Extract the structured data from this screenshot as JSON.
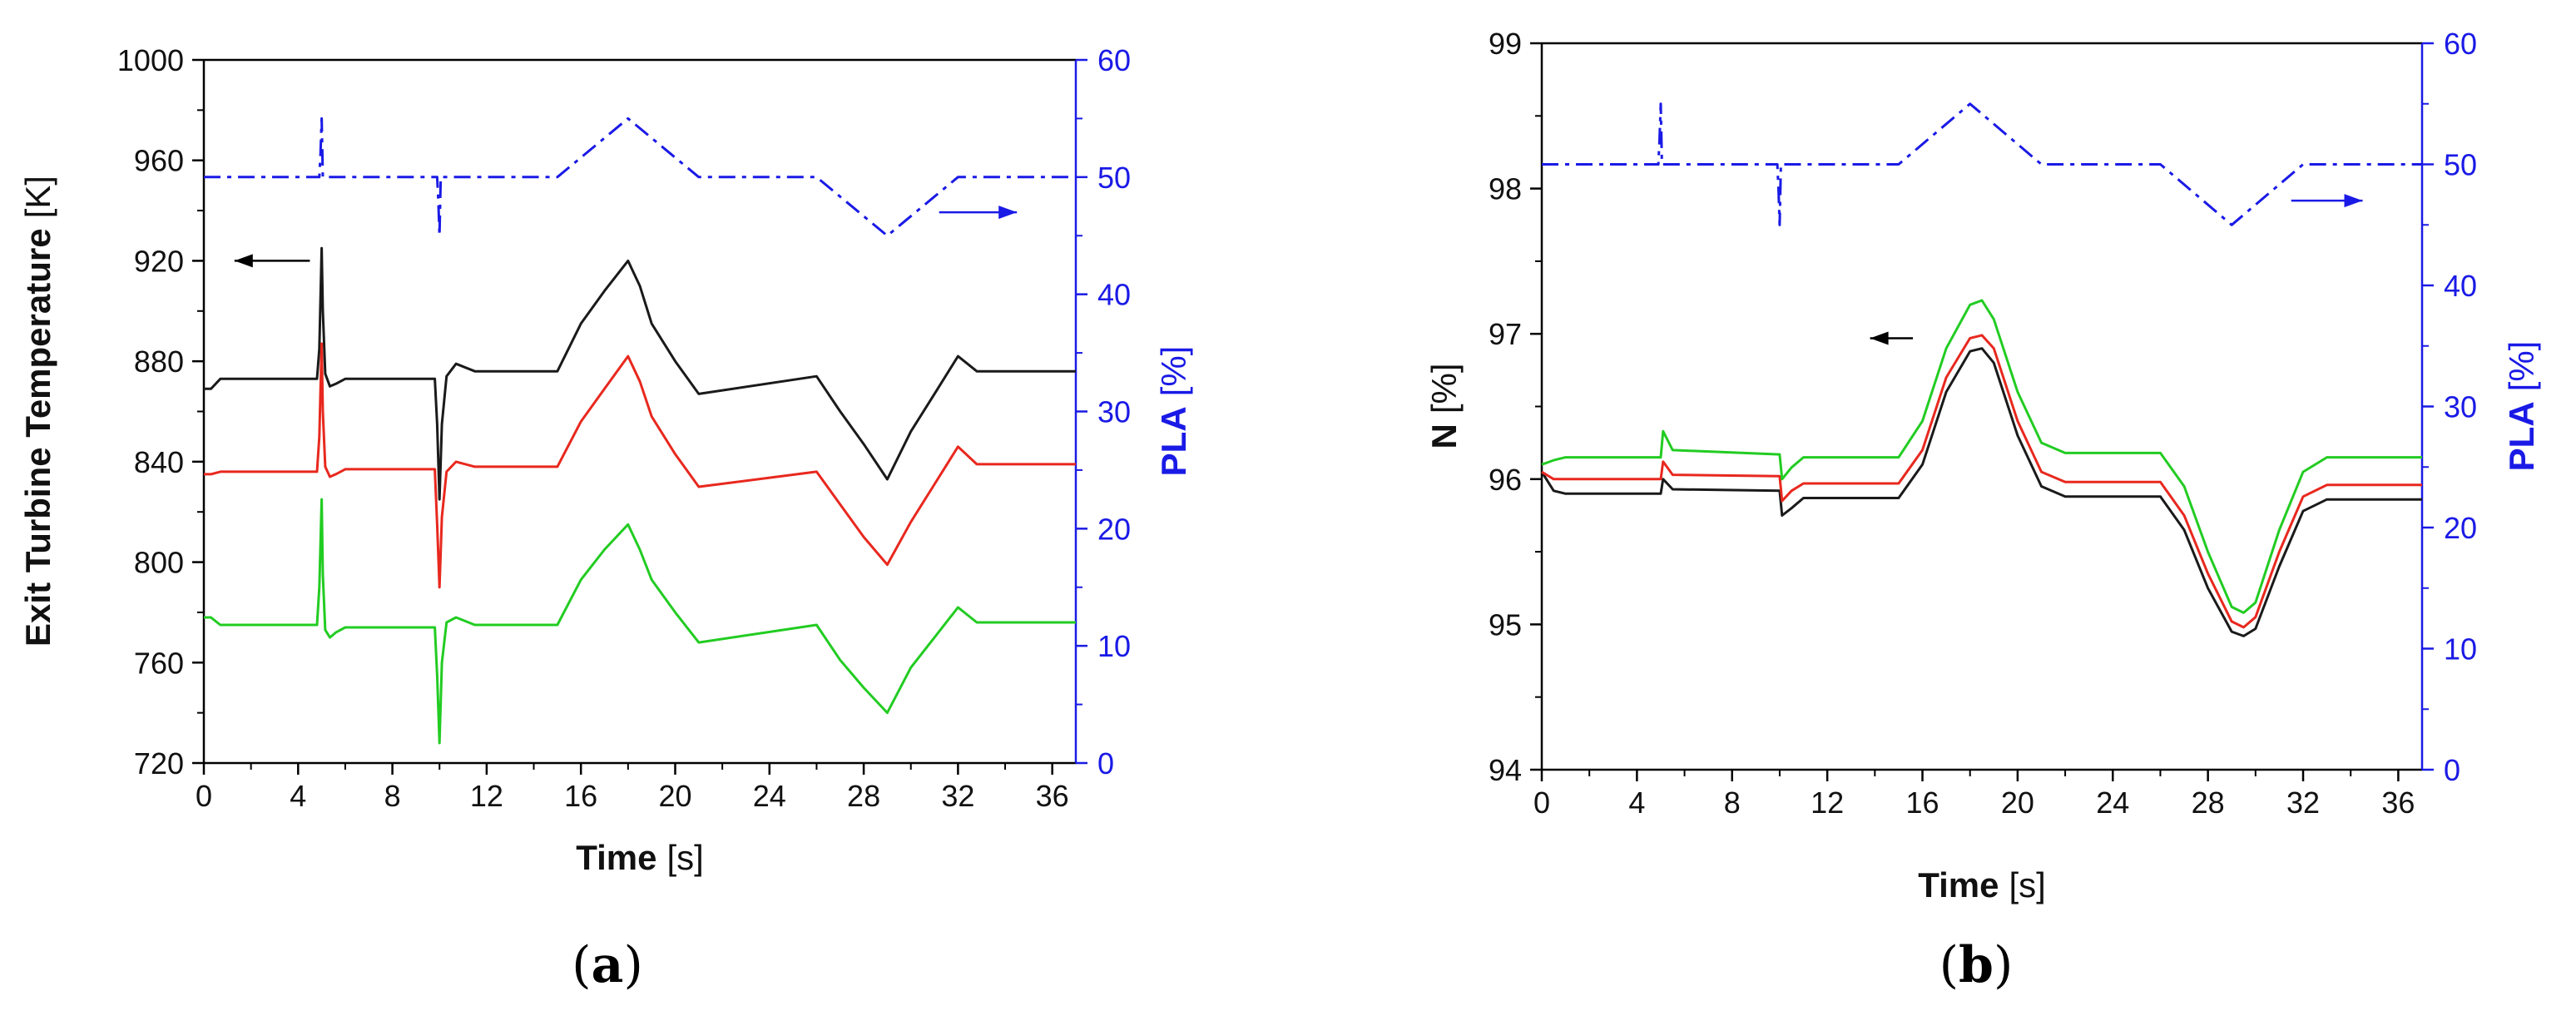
{
  "colors": {
    "black": "#1a1a1a",
    "red": "#e8281e",
    "green": "#22cc22",
    "blue": "#1a1ae6"
  },
  "chart_data": [
    {
      "type": "line",
      "panel": "(a)",
      "panel_label": {
        "open": "(",
        "letter": "a",
        "close": ")"
      },
      "xlabel": {
        "bold": "Time",
        "unit": "[s]"
      },
      "ylabel": {
        "bold": "Exit Turbine Temperature",
        "unit": "[K]"
      },
      "y2label": {
        "bold": "PLA",
        "unit": "[%]"
      },
      "xlim": [
        0,
        37
      ],
      "ylim": [
        720,
        1000
      ],
      "y2lim": [
        0,
        60
      ],
      "xticks": [
        0,
        4,
        8,
        12,
        16,
        20,
        24,
        28,
        32,
        36
      ],
      "yticks": [
        720,
        760,
        800,
        840,
        880,
        920,
        960,
        1000
      ],
      "y2ticks": [
        0,
        10,
        20,
        30,
        40,
        50,
        60
      ],
      "arrows": [
        {
          "direction": "left",
          "axis": "left",
          "x": [
            4.5,
            1.3
          ],
          "y": 920
        },
        {
          "direction": "right",
          "axis": "right",
          "x": [
            31.2,
            34.5
          ],
          "y": 47
        }
      ],
      "series": [
        {
          "name": "black",
          "axis": "left",
          "color": "#1a1a1a",
          "x": [
            0,
            0.3,
            0.7,
            4.8,
            4.9,
            5.0,
            5.05,
            5.15,
            5.35,
            5.6,
            6.0,
            9.8,
            9.9,
            10.0,
            10.1,
            10.3,
            10.7,
            11.5,
            15.0,
            16.0,
            17.0,
            18.0,
            18.5,
            19.0,
            20.0,
            21.0,
            26.0,
            27.0,
            28.0,
            29.0,
            30.0,
            31.0,
            32.0,
            32.8,
            37
          ],
          "y": [
            869,
            869,
            873,
            873,
            885,
            925,
            900,
            875,
            870,
            871,
            873,
            873,
            855,
            825,
            855,
            874,
            879,
            876,
            876,
            895,
            908,
            920,
            910,
            895,
            880,
            867,
            874,
            860,
            847,
            833,
            852,
            867,
            882,
            876,
            876
          ]
        },
        {
          "name": "red",
          "axis": "left",
          "color": "#e8281e",
          "x": [
            0,
            0.3,
            0.7,
            4.8,
            4.9,
            5.0,
            5.05,
            5.15,
            5.35,
            5.6,
            6.0,
            9.8,
            9.9,
            10.0,
            10.1,
            10.3,
            10.7,
            11.5,
            15.0,
            16.0,
            17.0,
            18.0,
            18.5,
            19.0,
            20.0,
            21.0,
            26.0,
            27.0,
            28.0,
            29.0,
            30.0,
            31.0,
            32.0,
            32.8,
            37
          ],
          "y": [
            835,
            835,
            836,
            836,
            850,
            887,
            860,
            838,
            834,
            835,
            837,
            837,
            815,
            790,
            818,
            836,
            840,
            838,
            838,
            856,
            869,
            882,
            872,
            858,
            843,
            830,
            836,
            823,
            810,
            799,
            816,
            831,
            846,
            839,
            839
          ]
        },
        {
          "name": "green",
          "axis": "left",
          "color": "#22cc22",
          "x": [
            0,
            0.3,
            0.7,
            4.8,
            4.9,
            5.0,
            5.05,
            5.15,
            5.35,
            5.6,
            6.0,
            9.8,
            9.9,
            10.0,
            10.1,
            10.3,
            10.7,
            11.5,
            15.0,
            16.0,
            17.0,
            18.0,
            18.5,
            19.0,
            20.0,
            21.0,
            26.0,
            27.0,
            28.0,
            29.0,
            30.0,
            31.0,
            32.0,
            32.8,
            37
          ],
          "y": [
            778,
            778,
            775,
            775,
            790,
            825,
            795,
            773,
            770,
            772,
            774,
            774,
            755,
            728,
            760,
            776,
            778,
            775,
            775,
            793,
            805,
            815,
            805,
            793,
            780,
            768,
            775,
            761,
            750,
            740,
            758,
            770,
            782,
            776,
            776
          ]
        },
        {
          "name": "PLA",
          "axis": "right",
          "color": "#1a1ae6",
          "dash": "dashdot",
          "x": [
            0,
            4.9,
            4.95,
            5.0,
            5.05,
            5.1,
            9.9,
            9.95,
            10.0,
            10.05,
            10.1,
            15.0,
            18.0,
            21.0,
            26.0,
            29.0,
            32.0,
            37
          ],
          "y": [
            50,
            50,
            52,
            55,
            50,
            50,
            50,
            48,
            45,
            50,
            50,
            50,
            55,
            50,
            50,
            45,
            50,
            50
          ]
        }
      ]
    },
    {
      "type": "line",
      "panel": "(b)",
      "panel_label": {
        "open": "(",
        "letter": "b",
        "close": ")"
      },
      "xlabel": {
        "bold": "Time",
        "unit": "[s]"
      },
      "ylabel": {
        "bold": "N",
        "unit": "[%]"
      },
      "y2label": {
        "bold": "PLA",
        "unit": "[%]"
      },
      "xlim": [
        0,
        37
      ],
      "ylim": [
        94,
        99
      ],
      "y2lim": [
        0,
        60
      ],
      "xticks": [
        0,
        4,
        8,
        12,
        16,
        20,
        24,
        28,
        32,
        36
      ],
      "yticks": [
        94,
        95,
        96,
        97,
        98,
        99
      ],
      "y2ticks": [
        0,
        10,
        20,
        30,
        40,
        50,
        60
      ],
      "arrows": [
        {
          "direction": "left",
          "axis": "left",
          "x": [
            15.6,
            13.8
          ],
          "y": 96.97
        },
        {
          "direction": "right",
          "axis": "right",
          "x": [
            31.5,
            34.5
          ],
          "y": 47
        }
      ],
      "series": [
        {
          "name": "black",
          "axis": "left",
          "color": "#1a1a1a",
          "x": [
            0,
            0.5,
            1.0,
            5.0,
            5.1,
            5.5,
            10.0,
            10.1,
            10.5,
            11.0,
            15.0,
            16.0,
            17.0,
            18.0,
            18.5,
            19.0,
            20.0,
            21.0,
            22.0,
            26.0,
            27.0,
            28.0,
            29.0,
            29.5,
            30.0,
            31.0,
            32.0,
            33.0,
            37
          ],
          "y": [
            96.05,
            95.92,
            95.9,
            95.9,
            96.0,
            95.93,
            95.92,
            95.75,
            95.8,
            95.87,
            95.87,
            96.1,
            96.6,
            96.88,
            96.9,
            96.8,
            96.3,
            95.95,
            95.88,
            95.88,
            95.65,
            95.25,
            94.95,
            94.92,
            94.97,
            95.4,
            95.78,
            95.86,
            95.86
          ]
        },
        {
          "name": "red",
          "axis": "left",
          "color": "#e8281e",
          "x": [
            0,
            0.5,
            1.0,
            5.0,
            5.1,
            5.5,
            10.0,
            10.1,
            10.5,
            11.0,
            15.0,
            16.0,
            17.0,
            18.0,
            18.5,
            19.0,
            20.0,
            21.0,
            22.0,
            26.0,
            27.0,
            28.0,
            29.0,
            29.5,
            30.0,
            31.0,
            32.0,
            33.0,
            37
          ],
          "y": [
            96.05,
            96.0,
            96.0,
            96.0,
            96.12,
            96.03,
            96.02,
            95.85,
            95.92,
            95.97,
            95.97,
            96.2,
            96.7,
            96.97,
            96.99,
            96.9,
            96.4,
            96.05,
            95.98,
            95.98,
            95.75,
            95.35,
            95.02,
            94.98,
            95.05,
            95.5,
            95.88,
            95.96,
            95.96
          ]
        },
        {
          "name": "green",
          "axis": "left",
          "color": "#22cc22",
          "x": [
            0,
            0.5,
            1.0,
            5.0,
            5.1,
            5.5,
            10.0,
            10.1,
            10.5,
            11.0,
            15.0,
            16.0,
            17.0,
            18.0,
            18.5,
            19.0,
            20.0,
            21.0,
            22.0,
            26.0,
            27.0,
            28.0,
            29.0,
            29.5,
            30.0,
            31.0,
            32.0,
            33.0,
            37
          ],
          "y": [
            96.1,
            96.13,
            96.15,
            96.15,
            96.33,
            96.2,
            96.17,
            96.0,
            96.08,
            96.15,
            96.15,
            96.4,
            96.9,
            97.2,
            97.23,
            97.1,
            96.6,
            96.25,
            96.18,
            96.18,
            95.95,
            95.5,
            95.12,
            95.08,
            95.15,
            95.65,
            96.05,
            96.15,
            96.15
          ]
        },
        {
          "name": "PLA",
          "axis": "right",
          "color": "#1a1ae6",
          "dash": "dashdot",
          "x": [
            0,
            4.9,
            4.95,
            5.0,
            5.05,
            5.1,
            9.9,
            9.95,
            10.0,
            10.05,
            10.1,
            15.0,
            18.0,
            21.0,
            26.0,
            29.0,
            32.0,
            37
          ],
          "y": [
            50,
            50,
            52,
            55,
            50,
            50,
            50,
            48,
            45,
            50,
            50,
            50,
            55,
            50,
            50,
            45,
            50,
            50
          ]
        }
      ]
    }
  ]
}
